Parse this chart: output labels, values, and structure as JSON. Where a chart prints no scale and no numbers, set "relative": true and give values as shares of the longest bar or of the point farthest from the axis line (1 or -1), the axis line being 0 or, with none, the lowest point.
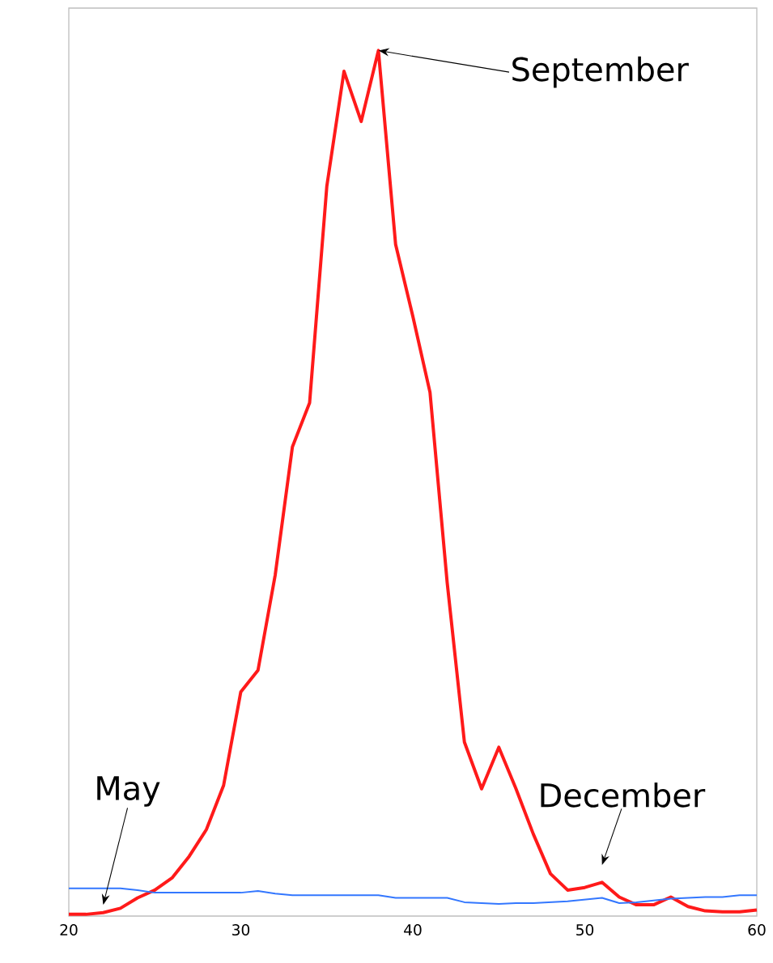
{
  "chart_data": {
    "type": "line",
    "relative": true,
    "x": [
      20,
      21,
      22,
      23,
      24,
      25,
      26,
      27,
      28,
      29,
      30,
      31,
      32,
      33,
      34,
      35,
      36,
      37,
      38,
      39,
      40,
      41,
      42,
      43,
      44,
      45,
      46,
      47,
      48,
      49,
      50,
      51,
      52,
      53,
      54,
      55,
      56,
      57,
      58,
      59,
      60
    ],
    "xlim": [
      20,
      60
    ],
    "xticks": [
      20,
      30,
      40,
      50,
      60
    ],
    "series": [
      {
        "color": "#ff1a1a",
        "values": [
          0.002,
          0.002,
          0.004,
          0.009,
          0.021,
          0.03,
          0.044,
          0.069,
          0.1,
          0.151,
          0.259,
          0.284,
          0.394,
          0.542,
          0.593,
          0.843,
          0.976,
          0.918,
          1,
          0.776,
          0.693,
          0.605,
          0.385,
          0.201,
          0.147,
          0.195,
          0.147,
          0.095,
          0.049,
          0.03,
          0.033,
          0.039,
          0.022,
          0.013,
          0.013,
          0.022,
          0.011,
          0.006,
          0.005,
          0.005,
          0.007
        ]
      },
      {
        "color": "#3377ff",
        "values": [
          0.032,
          0.032,
          0.032,
          0.032,
          0.03,
          0.027,
          0.027,
          0.027,
          0.027,
          0.027,
          0.027,
          0.029,
          0.026,
          0.024,
          0.024,
          0.024,
          0.024,
          0.024,
          0.024,
          0.021,
          0.021,
          0.021,
          0.021,
          0.016,
          0.015,
          0.014,
          0.015,
          0.015,
          0.016,
          0.017,
          0.019,
          0.021,
          0.015,
          0.016,
          0.018,
          0.02,
          0.021,
          0.022,
          0.022,
          0.024,
          0.024
        ]
      }
    ],
    "annotations": [
      {
        "text": "September",
        "x": 38,
        "y": 1
      },
      "May",
      {
        "text": "December",
        "x": 51,
        "y": 0.039
      }
    ]
  }
}
